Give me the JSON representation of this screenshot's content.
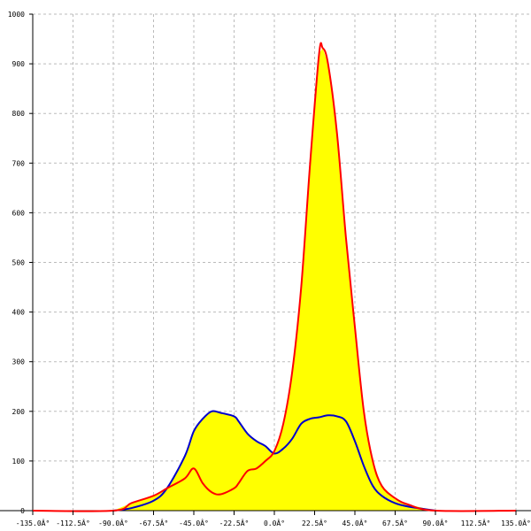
{
  "chart_data": {
    "type": "area",
    "title": "",
    "xlabel": "",
    "ylabel": "",
    "xlim": [
      -135,
      135
    ],
    "ylim": [
      0,
      1000
    ],
    "grid": true,
    "fill_color": "#ffff00",
    "x_tick_labels": [
      "-135.0Â°",
      "-112.5Â°",
      "-90.0Â°",
      "-67.5Â°",
      "-45.0Â°",
      "-22.5Â°",
      "0.0Â°",
      "22.5Â°",
      "45.0Â°",
      "67.5Â°",
      "90.0Â°",
      "112.5Â°",
      "135.0Â°"
    ],
    "x_ticks": [
      -135,
      -112.5,
      -90,
      -67.5,
      -45,
      -22.5,
      0,
      22.5,
      45,
      67.5,
      90,
      112.5,
      135
    ],
    "y_ticks": [
      0,
      100,
      200,
      300,
      400,
      500,
      600,
      700,
      800,
      900,
      1000
    ],
    "series": [
      {
        "color": "#ff0000",
        "x": [
          -135,
          -90,
          -80,
          -67.5,
          -60,
          -50,
          -45,
          -40,
          -35,
          -30,
          -22.5,
          -20,
          -15,
          -10,
          -5,
          0,
          5,
          10,
          15,
          20,
          25,
          27,
          30,
          35,
          40,
          45,
          50,
          55,
          60,
          67.5,
          75,
          90,
          135
        ],
        "y": [
          0,
          0,
          15,
          30,
          45,
          65,
          85,
          55,
          37,
          33,
          45,
          55,
          80,
          85,
          100,
          120,
          175,
          280,
          450,
          700,
          920,
          932,
          900,
          760,
          550,
          370,
          200,
          100,
          50,
          25,
          12,
          0,
          0
        ]
      },
      {
        "color": "#0000cc",
        "x": [
          -90,
          -80,
          -67.5,
          -60,
          -50,
          -45,
          -40,
          -35,
          -30,
          -22.5,
          -20,
          -15,
          -10,
          -5,
          0,
          5,
          10,
          15,
          20,
          25,
          30,
          35,
          40,
          45,
          50,
          55,
          60,
          67.5,
          75,
          90
        ],
        "y": [
          0,
          5,
          20,
          45,
          110,
          160,
          185,
          200,
          197,
          190,
          180,
          155,
          140,
          130,
          115,
          125,
          145,
          175,
          185,
          188,
          192,
          190,
          180,
          140,
          90,
          50,
          30,
          15,
          8,
          0
        ]
      }
    ]
  }
}
